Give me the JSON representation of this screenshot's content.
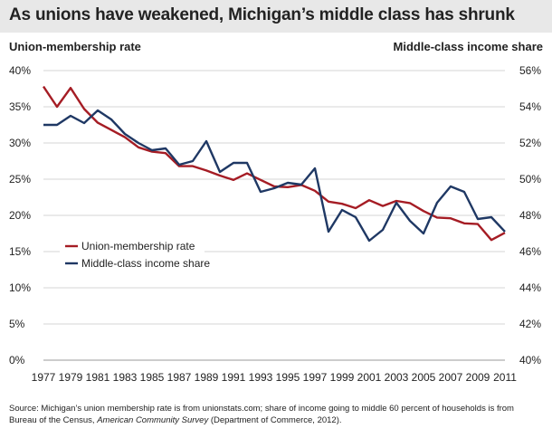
{
  "chart_data": {
    "type": "line",
    "title": "As unions have weakened, Michigan’s middle class has shrunk",
    "ylabel_left": "Union-membership rate",
    "ylabel_right": "Middle-class income share",
    "x": [
      1977,
      1978,
      1979,
      1980,
      1981,
      1982,
      1983,
      1984,
      1985,
      1986,
      1987,
      1988,
      1989,
      1990,
      1991,
      1992,
      1993,
      1994,
      1995,
      1996,
      1997,
      1998,
      1999,
      2000,
      2001,
      2002,
      2003,
      2004,
      2005,
      2006,
      2007,
      2008,
      2009,
      2010,
      2011
    ],
    "x_ticks": [
      "1977",
      "1979",
      "1981",
      "1983",
      "1985",
      "1987",
      "1989",
      "1991",
      "1993",
      "1995",
      "1997",
      "1999",
      "2001",
      "2003",
      "2005",
      "2007",
      "2009",
      "2011"
    ],
    "y_left_ticks": [
      "0%",
      "5%",
      "10%",
      "15%",
      "20%",
      "25%",
      "30%",
      "35%",
      "40%"
    ],
    "y_right_ticks": [
      "40%",
      "42%",
      "44%",
      "46%",
      "48%",
      "50%",
      "52%",
      "54%",
      "56%"
    ],
    "ylim_left": [
      0,
      40
    ],
    "ylim_right": [
      40,
      56
    ],
    "series": [
      {
        "name": "Union-membership rate",
        "axis": "left",
        "color": "#a51c24",
        "values": [
          37.8,
          35.0,
          37.6,
          34.7,
          32.8,
          31.8,
          30.8,
          29.4,
          28.8,
          28.6,
          26.8,
          26.8,
          26.2,
          25.5,
          24.9,
          25.8,
          24.9,
          24.0,
          23.9,
          24.2,
          23.4,
          21.9,
          21.6,
          21.0,
          22.1,
          21.3,
          22.0,
          21.7,
          20.6,
          19.7,
          19.6,
          18.9,
          18.8,
          16.6,
          17.6
        ]
      },
      {
        "name": "Middle-class income share",
        "axis": "right",
        "color": "#1f3864",
        "values": [
          53.0,
          53.0,
          53.5,
          53.1,
          53.8,
          53.3,
          52.5,
          52.0,
          51.6,
          51.7,
          50.8,
          51.0,
          52.1,
          50.4,
          50.9,
          50.9,
          49.3,
          49.5,
          49.8,
          49.7,
          50.6,
          47.1,
          48.3,
          47.9,
          46.6,
          47.2,
          48.7,
          47.7,
          47.0,
          48.7,
          49.6,
          49.3,
          47.8,
          47.9,
          47.1
        ]
      }
    ],
    "legend_position": "left-middle",
    "source_prefix": "Source: Michigan’s union membership rate is from unionstats.com; share of income going to middle 60 percent of households is from Bureau of the Census,",
    "source_italic": "American Community Survey",
    "source_suffix": "(Department of Commerce, 2012)."
  }
}
